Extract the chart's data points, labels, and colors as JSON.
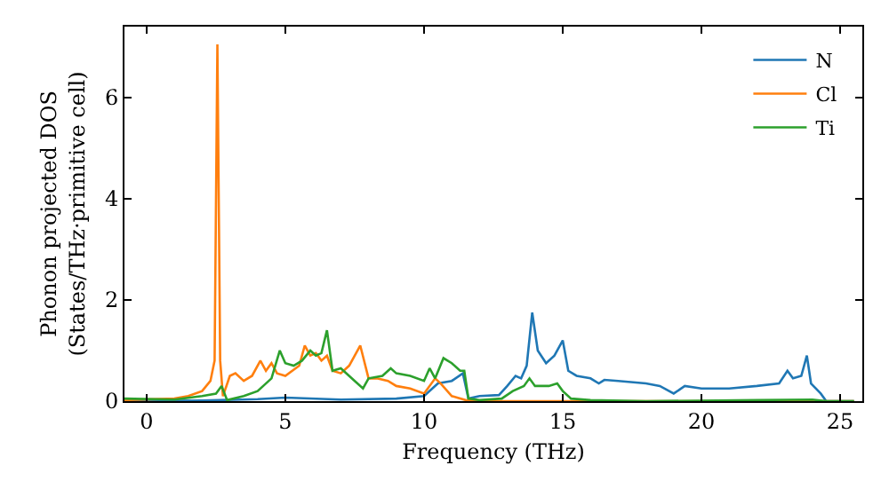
{
  "chart_data": {
    "type": "line",
    "xlabel": "Frequency (THz)",
    "ylabel": "Phonon projected DOS\n(States/THz·primitive cell)",
    "xlim": [
      -0.8,
      25.8
    ],
    "ylim": [
      0,
      7.4
    ],
    "xticks": [
      0,
      5,
      10,
      15,
      20,
      25
    ],
    "yticks": [
      0,
      2,
      4,
      6
    ],
    "grid": false,
    "legend": "top right",
    "marker": "none",
    "line_style": "solid",
    "series": [
      {
        "name": "N",
        "color": "#1f77b4",
        "x": [
          -0.8,
          2,
          4,
          5,
          7,
          9,
          10,
          10.5,
          11,
          11.4,
          11.6,
          12,
          12.7,
          13,
          13.3,
          13.5,
          13.7,
          13.9,
          14.1,
          14.4,
          14.7,
          15,
          15.2,
          15.5,
          16,
          16.3,
          16.5,
          17,
          18,
          18.5,
          19,
          19.4,
          20,
          21,
          22,
          22.8,
          23.1,
          23.3,
          23.6,
          23.8,
          23.95,
          24.3,
          24.5,
          25.5
        ],
        "values": [
          0,
          0.01,
          0.04,
          0.07,
          0.03,
          0.05,
          0.1,
          0.35,
          0.4,
          0.55,
          0.05,
          0.1,
          0.12,
          0.3,
          0.5,
          0.45,
          0.7,
          1.75,
          1.0,
          0.75,
          0.9,
          1.2,
          0.6,
          0.5,
          0.45,
          0.35,
          0.42,
          0.4,
          0.35,
          0.3,
          0.15,
          0.3,
          0.25,
          0.25,
          0.3,
          0.35,
          0.6,
          0.45,
          0.5,
          0.9,
          0.35,
          0.15,
          0,
          0
        ]
      },
      {
        "name": "Cl",
        "color": "#ff7f0e",
        "x": [
          -0.8,
          1,
          1.5,
          2,
          2.3,
          2.45,
          2.55,
          2.65,
          2.75,
          3,
          3.2,
          3.5,
          3.8,
          4.1,
          4.3,
          4.5,
          4.7,
          5,
          5.5,
          5.7,
          5.9,
          6.1,
          6.3,
          6.5,
          6.7,
          7,
          7.3,
          7.7,
          8,
          8.3,
          8.7,
          9,
          9.5,
          10,
          10.4,
          10.6,
          11,
          11.5,
          12,
          25.5
        ],
        "values": [
          0.02,
          0.05,
          0.1,
          0.2,
          0.4,
          0.8,
          7.05,
          0.8,
          0.1,
          0.5,
          0.55,
          0.4,
          0.5,
          0.8,
          0.6,
          0.75,
          0.55,
          0.5,
          0.7,
          1.1,
          0.9,
          0.95,
          0.8,
          0.9,
          0.6,
          0.55,
          0.7,
          1.1,
          0.45,
          0.45,
          0.4,
          0.3,
          0.25,
          0.15,
          0.45,
          0.35,
          0.1,
          0.02,
          0,
          0
        ]
      },
      {
        "name": "Ti",
        "color": "#2ca02c",
        "x": [
          -0.8,
          1,
          2,
          2.5,
          2.7,
          2.9,
          3.5,
          4,
          4.5,
          4.8,
          5,
          5.3,
          5.6,
          5.9,
          6.1,
          6.3,
          6.5,
          6.7,
          7,
          7.5,
          7.8,
          8,
          8.5,
          8.8,
          9,
          9.5,
          10,
          10.2,
          10.4,
          10.7,
          11,
          11.3,
          11.45,
          11.6,
          12,
          12.8,
          13.2,
          13.6,
          13.8,
          14,
          14.5,
          14.8,
          15,
          15.3,
          16,
          18,
          22,
          24,
          24.5,
          25.5
        ],
        "values": [
          0.05,
          0.03,
          0.1,
          0.15,
          0.3,
          0.02,
          0.1,
          0.2,
          0.45,
          1.0,
          0.75,
          0.7,
          0.8,
          1.0,
          0.9,
          0.95,
          1.4,
          0.6,
          0.65,
          0.4,
          0.25,
          0.45,
          0.5,
          0.65,
          0.55,
          0.5,
          0.4,
          0.65,
          0.45,
          0.85,
          0.75,
          0.6,
          0.6,
          0.05,
          0.02,
          0.05,
          0.2,
          0.3,
          0.45,
          0.3,
          0.3,
          0.35,
          0.2,
          0.05,
          0.02,
          0,
          0.02,
          0.03,
          0,
          0
        ]
      }
    ]
  }
}
